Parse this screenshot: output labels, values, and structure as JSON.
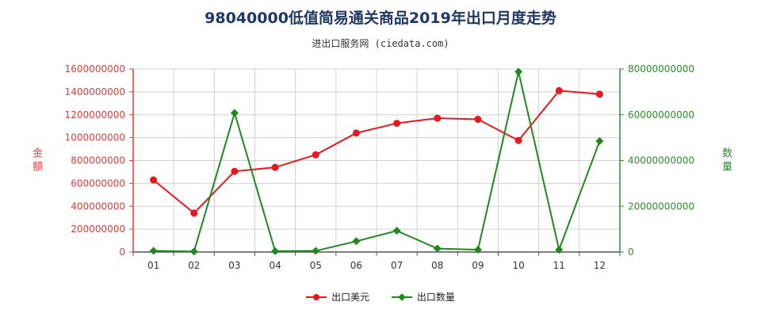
{
  "header": {
    "title": "98040000低值简易通关商品2019年出口月度走势",
    "subtitle": "进出口服务网 (ciedata.com)"
  },
  "colors": {
    "series1": "#e8191e",
    "series2": "#1e8a1e",
    "left_axis": "#e03c3c",
    "right_axis": "#2e8b2e"
  },
  "chart_data": {
    "type": "line",
    "title": "98040000低值简易通关商品2019年出口月度走势",
    "x": [
      "01",
      "02",
      "03",
      "04",
      "05",
      "06",
      "07",
      "08",
      "09",
      "10",
      "11",
      "12"
    ],
    "y_left": {
      "label": "金额",
      "ylim": [
        0,
        1600000000
      ],
      "ticks": [
        "0",
        "200000000",
        "400000000",
        "600000000",
        "800000000",
        "1000000000",
        "1200000000",
        "1400000000",
        "1600000000"
      ]
    },
    "y_right": {
      "label": "数量",
      "ylim": [
        0,
        80000000000
      ],
      "ticks": [
        "0",
        "20000000000",
        "40000000000",
        "60000000000",
        "80000000000"
      ]
    },
    "grid": true,
    "legend_position": "bottom",
    "series": [
      {
        "name": "出口美元",
        "axis": "left",
        "marker": "circle",
        "values": [
          630000000,
          340000000,
          705000000,
          740000000,
          850000000,
          1040000000,
          1125000000,
          1170000000,
          1160000000,
          975000000,
          1410000000,
          1380000000
        ]
      },
      {
        "name": "出口数量",
        "axis": "right",
        "marker": "diamond",
        "values": [
          500000000,
          200000000,
          60800000000,
          400000000,
          500000000,
          4700000000,
          9300000000,
          1500000000,
          1000000000,
          78800000000,
          1000000000,
          48500000000
        ]
      }
    ]
  }
}
